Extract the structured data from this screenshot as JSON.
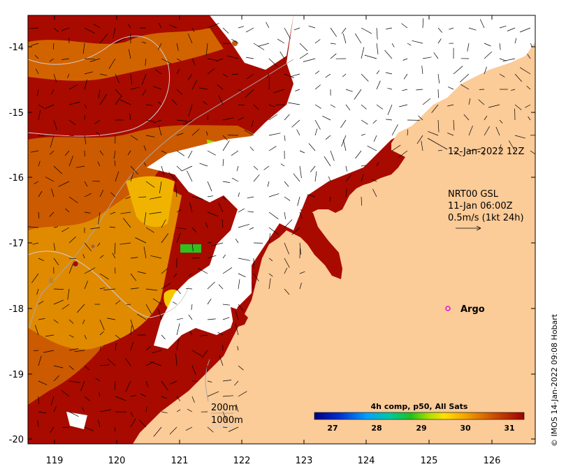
{
  "map": {
    "y_ticks": [
      "-14",
      "-15",
      "-16",
      "-17",
      "-18",
      "-19",
      "-20"
    ],
    "x_ticks": [
      "119",
      "120",
      "121",
      "122",
      "123",
      "124",
      "125",
      "126"
    ],
    "annotations": {
      "date_label": "12-Jan-2022 12Z",
      "current_line1": "NRT00 GSL",
      "current_line2": "11-Jan 06:00Z",
      "current_line3": "0.5m/s (1kt 24h)",
      "argo_label": "Argo",
      "contour_200": "200m",
      "contour_1000": "1000m"
    },
    "colorbar": {
      "title": "4h comp, p50, All Sats",
      "ticks": [
        "27",
        "28",
        "29",
        "30",
        "31"
      ],
      "colors": [
        "#00007f",
        "#0033cc",
        "#00a0ff",
        "#00c8a0",
        "#20c020",
        "#b0e000",
        "#ffe000",
        "#f4a300",
        "#cc5200",
        "#a00000"
      ]
    },
    "credit": "© IMOS 14-Jan-2022 09:08 Hobart",
    "colors": {
      "land": "#fbcb98",
      "cloud": "#ffffff",
      "sst_hot": "#a80a00",
      "argo": "#e010e0"
    }
  }
}
